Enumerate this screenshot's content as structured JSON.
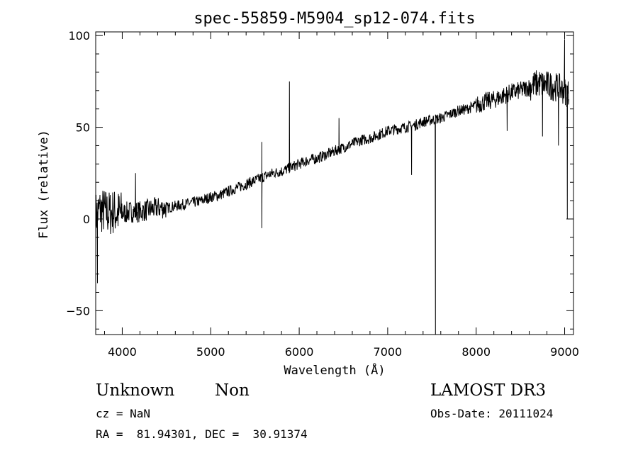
{
  "chart_data": {
    "type": "line",
    "title": "spec-55859-M5904_sp12-074.fits",
    "xlabel": "Wavelength (Å)",
    "ylabel": "Flux (relative)",
    "xlim": [
      3700,
      9100
    ],
    "ylim": [
      -63,
      102
    ],
    "xticks": [
      4000,
      5000,
      6000,
      7000,
      8000,
      9000
    ],
    "yticks": [
      -50,
      0,
      50,
      100
    ],
    "grid": false,
    "series": [
      {
        "name": "flux",
        "x": [
          3700,
          3750,
          3800,
          3850,
          3900,
          3950,
          4000,
          4100,
          4200,
          4300,
          4400,
          4500,
          4600,
          4700,
          4800,
          4900,
          5000,
          5100,
          5200,
          5300,
          5400,
          5500,
          5600,
          5700,
          5800,
          5900,
          6000,
          6100,
          6200,
          6300,
          6400,
          6500,
          6600,
          6700,
          6800,
          6900,
          7000,
          7100,
          7200,
          7300,
          7400,
          7500,
          7600,
          7700,
          7800,
          7900,
          8000,
          8100,
          8200,
          8300,
          8400,
          8500,
          8600,
          8700,
          8800,
          8900,
          9000,
          9050
        ],
        "y": [
          2,
          5,
          4,
          3,
          4,
          3,
          3,
          4,
          4,
          5,
          6,
          6,
          7,
          8,
          9,
          10,
          12,
          13,
          15,
          17,
          19,
          21,
          23,
          25,
          26,
          28,
          30,
          32,
          33,
          35,
          37,
          39,
          41,
          43,
          44,
          46,
          48,
          49,
          50,
          51,
          53,
          54,
          55,
          57,
          59,
          60,
          62,
          64,
          65,
          67,
          69,
          70,
          72,
          74,
          73,
          72,
          70,
          68
        ],
        "features": [
          {
            "x": 3720,
            "y": -35
          },
          {
            "x": 4150,
            "y": 25
          },
          {
            "x": 5577,
            "y": 42
          },
          {
            "x": 5577,
            "y": -5
          },
          {
            "x": 5890,
            "y": 75
          },
          {
            "x": 6450,
            "y": 55
          },
          {
            "x": 7270,
            "y": 24
          },
          {
            "x": 7540,
            "y": -63
          },
          {
            "x": 7540,
            "y": 5
          },
          {
            "x": 8350,
            "y": 48
          },
          {
            "x": 8750,
            "y": 45
          },
          {
            "x": 8930,
            "y": 40
          },
          {
            "x": 9000,
            "y": 98
          },
          {
            "x": 9030,
            "y": 0
          }
        ]
      }
    ]
  },
  "info": {
    "object_type": "Unknown",
    "subclass": "Non",
    "survey": "LAMOST DR3",
    "cz": "cz = NaN",
    "obs_date": "Obs-Date: 20111024",
    "coords": "RA =  81.94301, DEC =  30.91374"
  }
}
